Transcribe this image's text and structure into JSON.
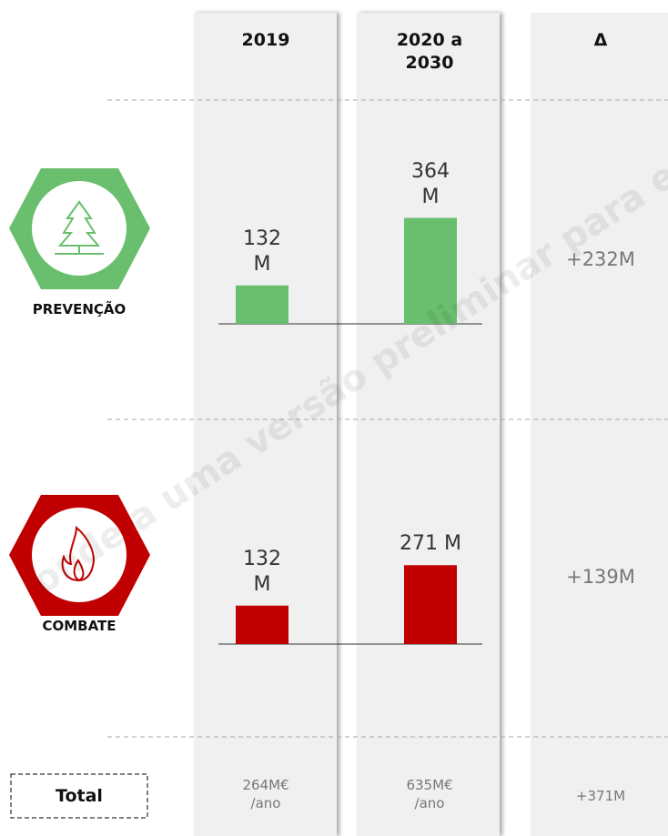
{
  "columns": [
    "2019",
    "2020 a 2030",
    "Δ"
  ],
  "rows": [
    {
      "label": "PREVENÇÃO",
      "color": "#6abf6e",
      "values": [
        132,
        364
      ],
      "value_labels": [
        "132 M",
        "364 M"
      ],
      "delta": "+232M"
    },
    {
      "label": "COMBATE",
      "color": "#c00000",
      "values": [
        132,
        271
      ],
      "value_labels": [
        "132 M",
        "271 M"
      ],
      "delta": "+139M"
    }
  ],
  "total": {
    "label": "Total",
    "values": [
      "264M€ /ano",
      "635M€ /ano"
    ],
    "delta": "+371M"
  },
  "watermark": "onde a uma versão preliminar para efeitos"
}
